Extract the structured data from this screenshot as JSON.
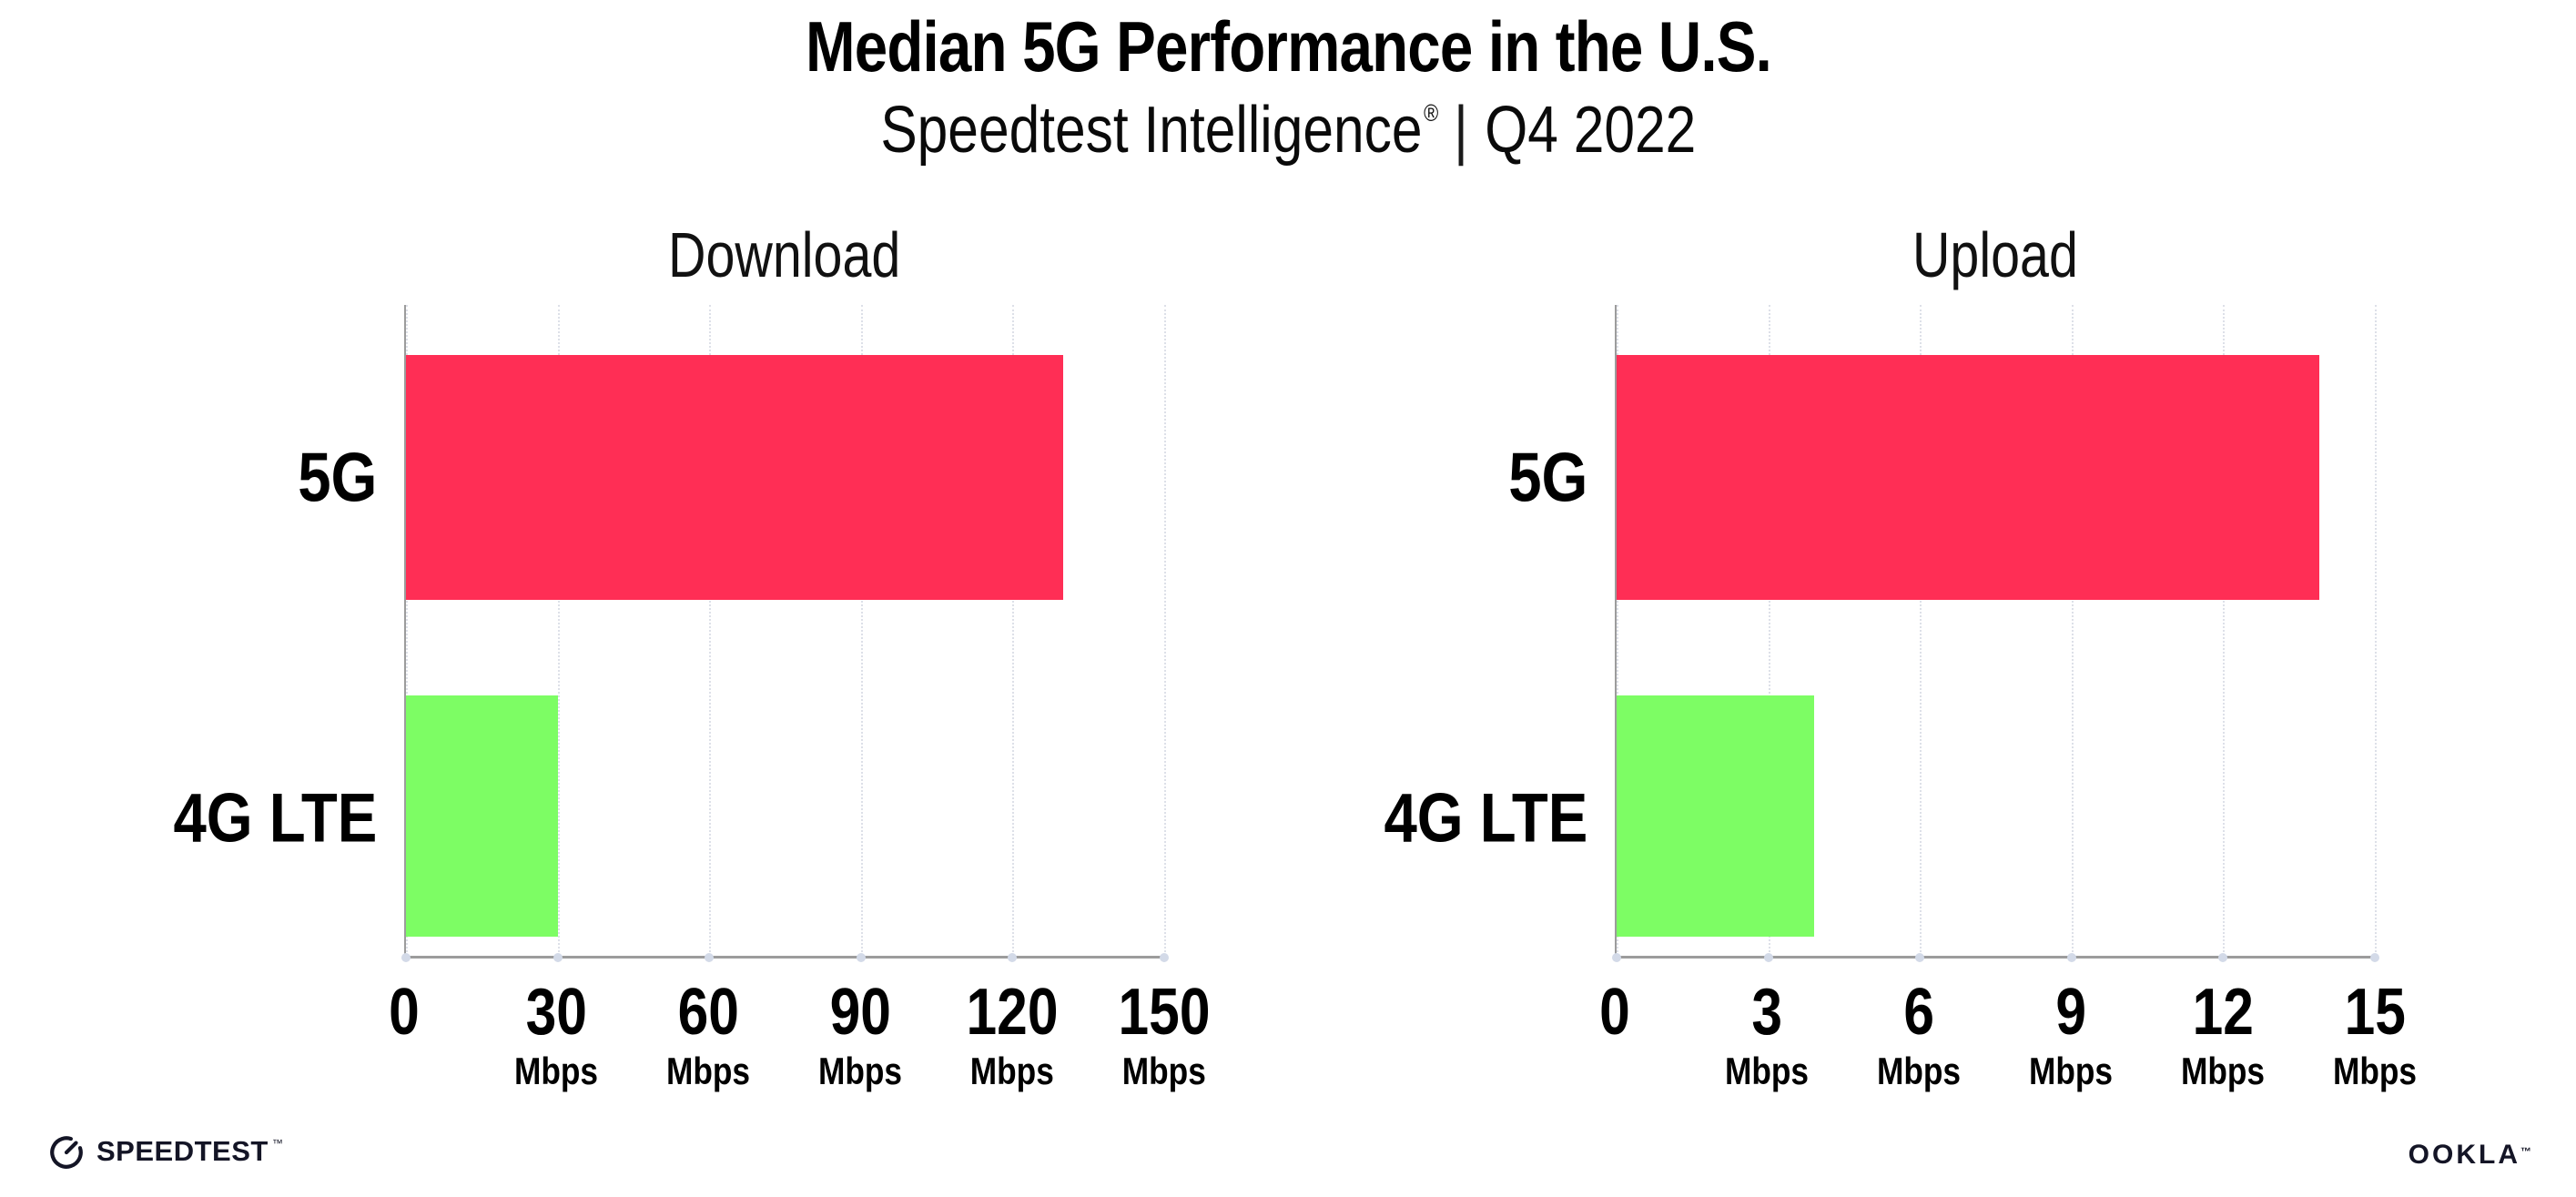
{
  "header": {
    "title": "Median 5G Performance in the U.S.",
    "subtitle_brand": "Speedtest Intelligence",
    "registered_mark": "®",
    "subtitle_divider": "|",
    "subtitle_period": "Q4 2022"
  },
  "colors": {
    "bar_5g": "#ff2e55",
    "bar_4g_lte": "#7dfd64",
    "axis": "#9c9c9c",
    "gridline": "#dde0e8",
    "tick_dot": "#d3dae8",
    "text": "#000000",
    "logo": "#141526"
  },
  "chart_data": [
    {
      "type": "bar",
      "orientation": "horizontal",
      "title": "Download",
      "categories": [
        "5G",
        "4G LTE"
      ],
      "values": [
        130,
        30
      ],
      "unit": "Mbps",
      "xlim": [
        0,
        150
      ],
      "xticks": [
        0,
        30,
        60,
        90,
        120,
        150
      ],
      "grid": "vertical-dotted",
      "legend": "none",
      "bar_colors": [
        "#ff2e55",
        "#7dfd64"
      ]
    },
    {
      "type": "bar",
      "orientation": "horizontal",
      "title": "Upload",
      "categories": [
        "5G",
        "4G LTE"
      ],
      "values": [
        13.9,
        3.9
      ],
      "unit": "Mbps",
      "xlim": [
        0,
        15
      ],
      "xticks": [
        0,
        3,
        6,
        9,
        12,
        15
      ],
      "grid": "vertical-dotted",
      "legend": "none",
      "bar_colors": [
        "#ff2e55",
        "#7dfd64"
      ]
    }
  ],
  "footer": {
    "speedtest_logo_text": "SPEEDTEST",
    "speedtest_trademark": "™",
    "ookla_logo_text": "OOKLA",
    "ookla_trademark": "™"
  }
}
